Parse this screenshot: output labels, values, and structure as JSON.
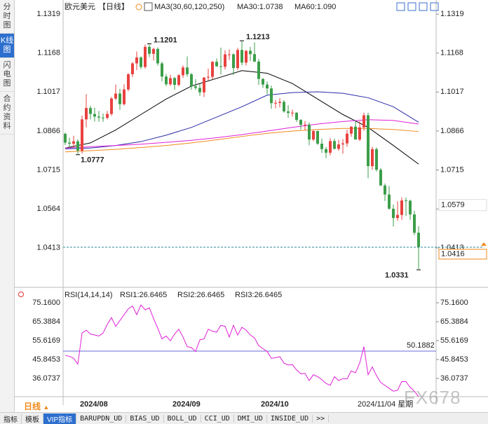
{
  "sidebar": [
    "分时图",
    "K线图",
    "闪电图",
    "合约资料"
  ],
  "toolbar": {
    "period": "日线",
    "tabs": [
      "指标",
      "模板",
      "VIP指标",
      "BARUPDN_UD",
      "BIAS_UD",
      "BOLL_UD",
      "CCI_UD",
      "DMI_UD",
      "INSIDE_UD",
      ">>"
    ]
  },
  "watermark": "FX678",
  "chart_data": [
    {
      "type": "candlestick",
      "title": "欧元美元",
      "period": "【日线】",
      "indicator": "MA3(30,60,120,250)",
      "up_color": "#e8423f",
      "down_color": "#3c9e4a",
      "grid": false,
      "ylim": [
        1.0274,
        1.136
      ],
      "yticks": [
        1.1319,
        1.1168,
        1.1017,
        1.0866,
        1.0715,
        1.0564,
        1.0413
      ],
      "categories": [
        null,
        null,
        null,
        "2024/08",
        null,
        null,
        null,
        null,
        null,
        null,
        null,
        null,
        null,
        null,
        null,
        null,
        null,
        null,
        null,
        null,
        null,
        null,
        null,
        null,
        null,
        "2024/09",
        null,
        null,
        null,
        null,
        null,
        null,
        null,
        null,
        null,
        null,
        null,
        null,
        null,
        null,
        null,
        null,
        null,
        null,
        null,
        null,
        "2024/10",
        null,
        null,
        null,
        null,
        null,
        null,
        null,
        null,
        null,
        null,
        null,
        null,
        null,
        null,
        null,
        null,
        null,
        null,
        null,
        null,
        null,
        null,
        null,
        null,
        null,
        null,
        null,
        null,
        null,
        null,
        null,
        null,
        null,
        null,
        null,
        null,
        null,
        null
      ],
      "open": [
        1.0855,
        1.0821,
        1.0817,
        1.0826,
        1.079,
        1.0911,
        1.0955,
        1.0932,
        1.0922,
        1.0918,
        1.0917,
        1.0932,
        1.0992,
        1.1011,
        1.097,
        1.1027,
        1.1086,
        1.1128,
        1.1151,
        1.1114,
        1.1192,
        1.1165,
        1.1184,
        1.1128,
        1.1077,
        1.1047,
        1.1071,
        1.1045,
        1.1082,
        1.1112,
        1.1086,
        1.1039,
        1.1033,
        1.1016,
        1.1073,
        1.1076,
        1.1134,
        1.1117,
        1.1115,
        1.1163,
        1.1163,
        1.111,
        1.118,
        1.1131,
        1.1177,
        1.1164,
        1.1135,
        1.1068,
        1.1046,
        1.1031,
        1.0974,
        1.0975,
        1.0979,
        1.0942,
        1.0936,
        1.0937,
        1.0909,
        1.089,
        1.0891,
        1.0833,
        1.0866,
        1.0817,
        1.0796,
        1.0782,
        1.0827,
        1.0797,
        1.0814,
        1.0818,
        1.0856,
        1.0883,
        1.0833,
        1.088,
        1.0927,
        1.073,
        1.0796,
        1.0716,
        1.0655,
        1.062,
        1.0565,
        1.0529,
        1.0541,
        1.0597,
        1.0596,
        1.0543,
        1.0472
      ],
      "high": [
        1.086,
        1.084,
        1.0848,
        1.0834,
        1.0926,
        1.1009,
        1.0964,
        1.0956,
        1.0944,
        1.0934,
        1.0944,
        1.0998,
        1.1046,
        1.1029,
        1.1047,
        1.109,
        1.1134,
        1.1174,
        1.1155,
        1.1201,
        1.1201,
        1.1189,
        1.119,
        1.1135,
        1.1087,
        1.1084,
        1.1076,
        1.1087,
        1.112,
        1.1155,
        1.1091,
        1.1067,
        1.1048,
        1.1075,
        1.1108,
        1.1137,
        1.1147,
        1.1189,
        1.1179,
        1.1182,
        1.1168,
        1.1188,
        1.1213,
        1.1179,
        1.1192,
        1.1209,
        1.1145,
        1.1071,
        1.1058,
        1.1042,
        1.0986,
        1.0993,
        1.0986,
        1.0966,
        1.0949,
        1.0939,
        1.0912,
        1.0905,
        1.0899,
        1.0871,
        1.0868,
        1.0837,
        1.0804,
        1.0839,
        1.0837,
        1.0832,
        1.0835,
        1.0871,
        1.0885,
        1.0905,
        1.0904,
        1.0937,
        1.0937,
        1.0805,
        1.0802,
        1.0723,
        1.0663,
        1.0653,
        1.0581,
        1.0594,
        1.0609,
        1.0608,
        1.06,
        1.0557,
        1.0497
      ],
      "low": [
        1.0812,
        1.0802,
        1.0801,
        1.0777,
        1.0779,
        1.088,
        1.0911,
        1.0903,
        1.0902,
        1.0902,
        1.0911,
        1.0925,
        1.0986,
        1.0948,
        1.0965,
        1.102,
        1.1075,
        1.1102,
        1.1106,
        1.1107,
        1.1152,
        1.1139,
        1.1119,
        1.1059,
        1.104,
        1.1041,
        1.1026,
        1.1039,
        1.1072,
        1.1077,
        1.1026,
        1.1025,
        1.1002,
        1.0998,
        1.1062,
        1.1066,
        1.1114,
        1.1085,
        1.1104,
        1.1141,
        1.1083,
        1.1102,
        1.112,
        1.112,
        1.1137,
        1.1133,
        1.1045,
        1.1033,
        1.1008,
        1.0952,
        1.0954,
        1.0958,
        1.0937,
        1.0917,
        1.0922,
        1.0901,
        1.0872,
        1.087,
        1.0811,
        1.0827,
        1.0812,
        1.0781,
        1.0761,
        1.0772,
        1.0795,
        1.079,
        1.0778,
        1.0805,
        1.0844,
        1.0834,
        1.0827,
        1.0867,
        1.0683,
        1.0716,
        1.0709,
        1.0653,
        1.0595,
        1.0561,
        1.0496,
        1.0518,
        1.0522,
        1.0537,
        1.0522,
        1.0463,
        1.0331
      ],
      "close": [
        1.0821,
        1.0817,
        1.0826,
        1.079,
        1.0911,
        1.0955,
        1.0932,
        1.0922,
        1.0918,
        1.0917,
        1.0932,
        1.0992,
        1.1011,
        1.097,
        1.1027,
        1.1086,
        1.1128,
        1.1151,
        1.1114,
        1.1192,
        1.1165,
        1.1184,
        1.1128,
        1.1077,
        1.1047,
        1.1071,
        1.1045,
        1.1082,
        1.1112,
        1.1086,
        1.1039,
        1.1033,
        1.1016,
        1.1073,
        1.1076,
        1.1134,
        1.1117,
        1.1115,
        1.1163,
        1.1163,
        1.111,
        1.118,
        1.1131,
        1.1177,
        1.1164,
        1.1135,
        1.1068,
        1.1046,
        1.1031,
        1.0974,
        1.0975,
        1.0979,
        1.0942,
        1.0936,
        1.0937,
        1.0909,
        1.089,
        1.0891,
        1.0833,
        1.0866,
        1.0817,
        1.0796,
        1.0782,
        1.0827,
        1.0797,
        1.0814,
        1.0818,
        1.0856,
        1.0883,
        1.0833,
        1.088,
        1.0927,
        1.073,
        1.0796,
        1.0716,
        1.0655,
        1.062,
        1.0565,
        1.0529,
        1.0541,
        1.0597,
        1.0596,
        1.0543,
        1.0472,
        1.0416
      ],
      "series": [
        {
          "name": "MA30:1.0738",
          "color": "#000000",
          "x": [
            0,
            6,
            12,
            18,
            24,
            30,
            36,
            42,
            48,
            54,
            60,
            66,
            72,
            78,
            84
          ],
          "values": [
            1.08,
            1.082,
            1.087,
            1.093,
            1.099,
            1.104,
            1.107,
            1.11,
            1.109,
            1.105,
            1.099,
            1.093,
            1.088,
            1.081,
            1.0738
          ]
        },
        {
          "name": "MA60:1.090",
          "color": "#2a2aa8",
          "x": [
            0,
            6,
            12,
            18,
            24,
            30,
            36,
            42,
            48,
            54,
            60,
            66,
            72,
            78,
            84
          ],
          "values": [
            1.0797,
            1.08,
            1.081,
            1.0825,
            1.085,
            1.088,
            1.092,
            1.096,
            1.1005,
            1.1015,
            1.1018,
            1.1012,
            1.0995,
            1.096,
            1.09
          ]
        },
        {
          "color": "#e020d8",
          "x": [
            0,
            6,
            12,
            18,
            24,
            30,
            36,
            42,
            48,
            54,
            60,
            66,
            72,
            78,
            84
          ],
          "values": [
            1.08,
            1.0805,
            1.081,
            1.0815,
            1.0822,
            1.083,
            1.084,
            1.0852,
            1.0866,
            1.088,
            1.0893,
            1.0903,
            1.091,
            1.0907,
            1.0893
          ]
        },
        {
          "color": "#f08a1c",
          "x": [
            0,
            6,
            12,
            18,
            24,
            30,
            36,
            42,
            48,
            54,
            60,
            66,
            72,
            78,
            84
          ],
          "values": [
            1.0785,
            1.079,
            1.0795,
            1.0802,
            1.081,
            1.082,
            1.0832,
            1.0845,
            1.0857,
            1.0866,
            1.0872,
            1.0876,
            1.0876,
            1.0872,
            1.0864
          ]
        }
      ],
      "annotations": [
        {
          "value": 1.1201,
          "label": "1.1201",
          "x": 20,
          "color": "#e03030"
        },
        {
          "value": 1.1213,
          "label": "1.1213",
          "x": 42,
          "color": "#e03030"
        },
        {
          "value": 1.0777,
          "label": "1.0777",
          "x": 3,
          "color": "#3c9e4a"
        },
        {
          "value": 1.0331,
          "label": "1.0331",
          "x": 84,
          "color": "#3c9e4a"
        }
      ],
      "cursor": {
        "price": 1.0579,
        "date": "2024/11/04 星期",
        "x": 70
      }
    },
    {
      "type": "line",
      "title": "RSI(14,14,14)",
      "ylim": [
        27.03,
        80.23
      ],
      "yticks": [
        {
          "value": 75.16,
          "label": "75.1600"
        },
        65.3884,
        55.6169,
        45.8453,
        36.0737
      ],
      "reference": 50.1882,
      "series": [
        {
          "name": "RSI1:26.6465",
          "color": "#000000"
        },
        {
          "name": "RSI2:26.6465",
          "color": "#2a2aa8"
        },
        {
          "name": "RSI3:26.6465",
          "color": "#e020d8",
          "values": [
            48.0,
            47.5,
            46.5,
            43.5,
            59.5,
            61.0,
            59.0,
            58.5,
            58.0,
            59.5,
            64.0,
            67.5,
            63.0,
            66.0,
            69.0,
            72.0,
            73.5,
            69.0,
            74.0,
            71.5,
            72.5,
            67.0,
            62.0,
            56.5,
            58.0,
            55.5,
            59.0,
            61.5,
            57.5,
            52.5,
            52.0,
            50.0,
            56.0,
            56.5,
            61.5,
            60.5,
            60.0,
            63.5,
            63.0,
            57.5,
            63.5,
            58.5,
            62.5,
            61.0,
            58.5,
            57.0,
            53.0,
            51.5,
            50.0,
            46.5,
            46.8,
            47.3,
            44.0,
            43.0,
            43.2,
            40.5,
            38.5,
            38.7,
            35.0,
            38.0,
            37.0,
            35.5,
            33.5,
            32.5,
            37.0,
            35.0,
            36.0,
            35.8,
            40.0,
            39.0,
            44.0,
            52.5,
            38.0,
            42.0,
            37.5,
            34.0,
            32.5,
            31.0,
            29.5,
            30.0,
            34.5,
            34.4,
            31.5,
            29.5,
            26.6465
          ]
        }
      ]
    }
  ]
}
